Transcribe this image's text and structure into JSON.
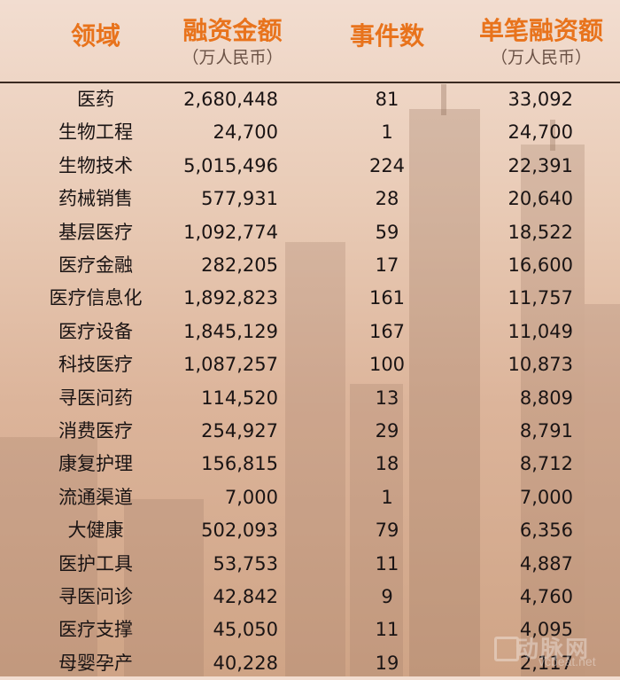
{
  "chart_data": {
    "type": "table",
    "columns": [
      {
        "title": "领域",
        "subtitle": ""
      },
      {
        "title": "融资金额",
        "subtitle": "（万人民币）"
      },
      {
        "title": "事件数",
        "subtitle": ""
      },
      {
        "title": "单笔融资额",
        "subtitle": "（万人民币）"
      }
    ],
    "rows": [
      {
        "domain": "医药",
        "amount": "2,680,448",
        "events": "81",
        "per_deal": "33,092"
      },
      {
        "domain": "生物工程",
        "amount": "24,700",
        "events": "1",
        "per_deal": "24,700"
      },
      {
        "domain": "生物技术",
        "amount": "5,015,496",
        "events": "224",
        "per_deal": "22,391"
      },
      {
        "domain": "药械销售",
        "amount": "577,931",
        "events": "28",
        "per_deal": "20,640"
      },
      {
        "domain": "基层医疗",
        "amount": "1,092,774",
        "events": "59",
        "per_deal": "18,522"
      },
      {
        "domain": "医疗金融",
        "amount": "282,205",
        "events": "17",
        "per_deal": "16,600"
      },
      {
        "domain": "医疗信息化",
        "amount": "1,892,823",
        "events": "161",
        "per_deal": "11,757"
      },
      {
        "domain": "医疗设备",
        "amount": "1,845,129",
        "events": "167",
        "per_deal": "11,049"
      },
      {
        "domain": "科技医疗",
        "amount": "1,087,257",
        "events": "100",
        "per_deal": "10,873"
      },
      {
        "domain": "寻医问药",
        "amount": "114,520",
        "events": "13",
        "per_deal": "8,809"
      },
      {
        "domain": "消费医疗",
        "amount": "254,927",
        "events": "29",
        "per_deal": "8,791"
      },
      {
        "domain": "康复护理",
        "amount": "156,815",
        "events": "18",
        "per_deal": "8,712"
      },
      {
        "domain": "流通渠道",
        "amount": "7,000",
        "events": "1",
        "per_deal": "7,000"
      },
      {
        "domain": "大健康",
        "amount": "502,093",
        "events": "79",
        "per_deal": "6,356"
      },
      {
        "domain": "医护工具",
        "amount": "53,753",
        "events": "11",
        "per_deal": "4,887"
      },
      {
        "domain": "寻医问诊",
        "amount": "42,842",
        "events": "9",
        "per_deal": "4,760"
      },
      {
        "domain": "医疗支撑",
        "amount": "45,050",
        "events": "11",
        "per_deal": "4,095"
      },
      {
        "domain": "母婴孕产",
        "amount": "40,228",
        "events": "19",
        "per_deal": "2,117"
      }
    ]
  },
  "watermark": {
    "cn": "动脉网",
    "en": "vcbeat.net"
  },
  "colors": {
    "header": "#e8731c",
    "text": "#1a1414",
    "rule": "#3a2a22"
  }
}
